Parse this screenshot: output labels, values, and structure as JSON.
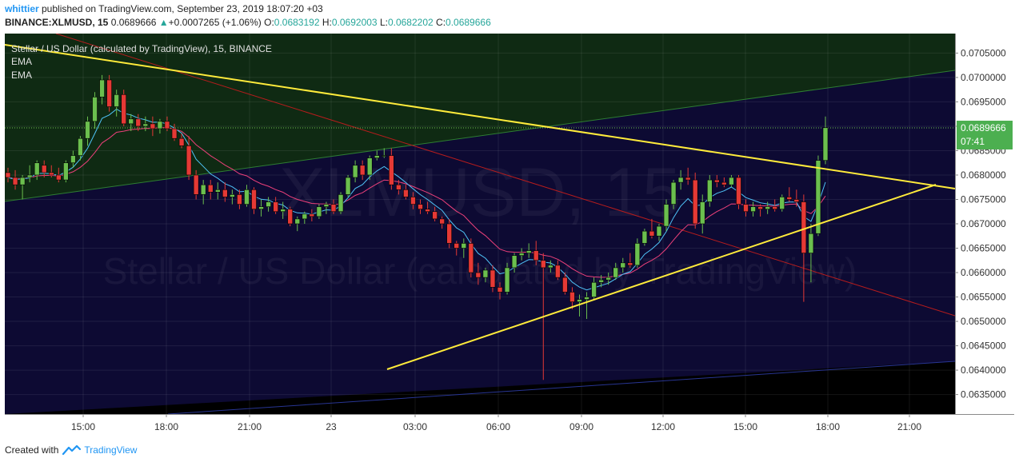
{
  "header": {
    "user": "whittier",
    "published": " published on TradingView.com, September 23, 2019 18:07:20 +03",
    "symbol": "BINANCE:XLMUSD, 15",
    "last": "0.0689666",
    "change": "+0.0007265 (+1.06%)",
    "o_label": "O:",
    "o_val": "0.0683192",
    "h_label": "H:",
    "h_val": "0.0692003",
    "l_label": "L:",
    "l_val": "0.0682202",
    "c_label": "C:",
    "c_val": "0.0689666"
  },
  "legend": {
    "title": "Stellar / US Dollar (calculated by TradingView), 15, BINANCE",
    "ema1": "EMA",
    "ema2": "EMA"
  },
  "watermark": {
    "symbol": "XLMUSD, 15",
    "name": "Stellar / US Dollar (calculated by TradingView)"
  },
  "price_tag": {
    "last": "0.0689666",
    "countdown": "07:41"
  },
  "footer": {
    "created": "Created with",
    "brand": "TradingView"
  },
  "colors": {
    "background": "#0d0a33",
    "up_candle": "#6bbf4e",
    "down_candle": "#e53935",
    "trendline": "#ffeb3b",
    "ema_fast": "#4fc3f7",
    "ema_slow": "#ec407a",
    "channel_fill": "#0e2e12",
    "price_tag": "#4caf50"
  },
  "chart_data": {
    "type": "candlestick",
    "xlabels": [
      "15:00",
      "18:00",
      "21:00",
      "23",
      "03:00",
      "06:00",
      "09:00",
      "12:00",
      "15:00",
      "18:00",
      "21:00"
    ],
    "ylim": [
      0.0631,
      0.0709
    ],
    "yticks": [
      "0.0705000",
      "0.0700000",
      "0.0695000",
      "0.0690000",
      "0.0685000",
      "0.0680000",
      "0.0675000",
      "0.0670000",
      "0.0665000",
      "0.0660000",
      "0.0655000",
      "0.0650000",
      "0.0645000",
      "0.0640000",
      "0.0635000"
    ],
    "candles": [
      [
        0.06805,
        0.06815,
        0.06785,
        0.06795
      ],
      [
        0.06795,
        0.0681,
        0.0677,
        0.0678
      ],
      [
        0.0678,
        0.068,
        0.0675,
        0.06795
      ],
      [
        0.06795,
        0.0682,
        0.06785,
        0.068
      ],
      [
        0.068,
        0.0683,
        0.0679,
        0.06825
      ],
      [
        0.0682,
        0.0683,
        0.06795,
        0.06805
      ],
      [
        0.06805,
        0.0682,
        0.06795,
        0.068
      ],
      [
        0.068,
        0.06815,
        0.06785,
        0.0679
      ],
      [
        0.0679,
        0.0683,
        0.06785,
        0.06825
      ],
      [
        0.06825,
        0.0685,
        0.06815,
        0.0684
      ],
      [
        0.0684,
        0.0688,
        0.0683,
        0.06875
      ],
      [
        0.06875,
        0.0692,
        0.0686,
        0.0691
      ],
      [
        0.0691,
        0.0697,
        0.06895,
        0.0696
      ],
      [
        0.0696,
        0.07005,
        0.06945,
        0.06995
      ],
      [
        0.06995,
        0.07005,
        0.0693,
        0.0694
      ],
      [
        0.0694,
        0.06975,
        0.0692,
        0.06965
      ],
      [
        0.06965,
        0.06975,
        0.069,
        0.06905
      ],
      [
        0.06905,
        0.06925,
        0.0689,
        0.06915
      ],
      [
        0.06915,
        0.06925,
        0.0689,
        0.069
      ],
      [
        0.069,
        0.0692,
        0.0689,
        0.06905
      ],
      [
        0.06905,
        0.0692,
        0.0688,
        0.06895
      ],
      [
        0.06895,
        0.06915,
        0.06885,
        0.0691
      ],
      [
        0.0691,
        0.0692,
        0.0689,
        0.06895
      ],
      [
        0.06895,
        0.06905,
        0.0687,
        0.06875
      ],
      [
        0.06875,
        0.06885,
        0.06855,
        0.0686
      ],
      [
        0.0686,
        0.0688,
        0.0679,
        0.068
      ],
      [
        0.068,
        0.0681,
        0.0675,
        0.0676
      ],
      [
        0.0676,
        0.0679,
        0.0674,
        0.0678
      ],
      [
        0.0678,
        0.0679,
        0.0675,
        0.06765
      ],
      [
        0.06765,
        0.06785,
        0.0675,
        0.0677
      ],
      [
        0.0677,
        0.06785,
        0.06745,
        0.06755
      ],
      [
        0.06755,
        0.0677,
        0.0674,
        0.0676
      ],
      [
        0.0676,
        0.0677,
        0.0673,
        0.0674
      ],
      [
        0.0674,
        0.0678,
        0.06735,
        0.0677
      ],
      [
        0.0677,
        0.06775,
        0.0672,
        0.0673
      ],
      [
        0.0673,
        0.0675,
        0.06715,
        0.06735
      ],
      [
        0.06735,
        0.06755,
        0.06725,
        0.06745
      ],
      [
        0.06745,
        0.06755,
        0.0672,
        0.06725
      ],
      [
        0.06725,
        0.06745,
        0.0671,
        0.0673
      ],
      [
        0.0673,
        0.06735,
        0.06695,
        0.067
      ],
      [
        0.067,
        0.06715,
        0.06685,
        0.0671
      ],
      [
        0.0671,
        0.06725,
        0.067,
        0.0672
      ],
      [
        0.0672,
        0.0673,
        0.06705,
        0.06715
      ],
      [
        0.06715,
        0.0674,
        0.0671,
        0.06735
      ],
      [
        0.06735,
        0.06745,
        0.0672,
        0.0674
      ],
      [
        0.0674,
        0.0675,
        0.0672,
        0.06725
      ],
      [
        0.06725,
        0.06765,
        0.0672,
        0.0676
      ],
      [
        0.0676,
        0.068,
        0.06755,
        0.06795
      ],
      [
        0.06795,
        0.0683,
        0.06785,
        0.0682
      ],
      [
        0.0682,
        0.0683,
        0.0679,
        0.068
      ],
      [
        0.068,
        0.0684,
        0.0679,
        0.06835
      ],
      [
        0.06835,
        0.0685,
        0.0683,
        0.0684
      ],
      [
        0.0684,
        0.06855,
        0.06835,
        0.0684
      ],
      [
        0.0684,
        0.06855,
        0.0677,
        0.0678
      ],
      [
        0.0678,
        0.0679,
        0.0676,
        0.0677
      ],
      [
        0.0677,
        0.0678,
        0.0675,
        0.06755
      ],
      [
        0.06755,
        0.06765,
        0.0673,
        0.0674
      ],
      [
        0.0674,
        0.0675,
        0.0672,
        0.0673
      ],
      [
        0.0673,
        0.06745,
        0.0672,
        0.06725
      ],
      [
        0.06725,
        0.06735,
        0.06705,
        0.0671
      ],
      [
        0.0671,
        0.06715,
        0.0669,
        0.067
      ],
      [
        0.067,
        0.0671,
        0.0665,
        0.0666
      ],
      [
        0.0666,
        0.06665,
        0.06635,
        0.0665
      ],
      [
        0.0665,
        0.0667,
        0.0663,
        0.0666
      ],
      [
        0.0666,
        0.0667,
        0.0659,
        0.066
      ],
      [
        0.066,
        0.0662,
        0.06575,
        0.0659
      ],
      [
        0.0659,
        0.0661,
        0.0658,
        0.06605
      ],
      [
        0.06605,
        0.06615,
        0.0656,
        0.0657
      ],
      [
        0.0657,
        0.0658,
        0.06545,
        0.0656
      ],
      [
        0.0656,
        0.0662,
        0.06555,
        0.0661
      ],
      [
        0.0661,
        0.0664,
        0.066,
        0.06635
      ],
      [
        0.06635,
        0.0665,
        0.06625,
        0.0664
      ],
      [
        0.0664,
        0.0666,
        0.0663,
        0.06645
      ],
      [
        0.06645,
        0.06665,
        0.06615,
        0.06625
      ],
      [
        0.06625,
        0.0664,
        0.0638,
        0.0661
      ],
      [
        0.0661,
        0.06625,
        0.066,
        0.06615
      ],
      [
        0.06615,
        0.06625,
        0.06585,
        0.0659
      ],
      [
        0.0659,
        0.066,
        0.06555,
        0.0656
      ],
      [
        0.0656,
        0.0657,
        0.06525,
        0.0654
      ],
      [
        0.0654,
        0.06555,
        0.0651,
        0.06545
      ],
      [
        0.06545,
        0.0656,
        0.06505,
        0.0655
      ],
      [
        0.0655,
        0.0659,
        0.06545,
        0.0658
      ],
      [
        0.0658,
        0.06595,
        0.0657,
        0.06585
      ],
      [
        0.06585,
        0.066,
        0.06575,
        0.0659
      ],
      [
        0.0659,
        0.0662,
        0.06585,
        0.0661
      ],
      [
        0.0661,
        0.0663,
        0.066,
        0.0662
      ],
      [
        0.0662,
        0.0664,
        0.0661,
        0.06615
      ],
      [
        0.06615,
        0.0667,
        0.0661,
        0.0666
      ],
      [
        0.0666,
        0.0669,
        0.06655,
        0.06685
      ],
      [
        0.06685,
        0.0671,
        0.0667,
        0.06675
      ],
      [
        0.06675,
        0.067,
        0.06665,
        0.06695
      ],
      [
        0.06695,
        0.0675,
        0.06685,
        0.0674
      ],
      [
        0.0674,
        0.0679,
        0.0673,
        0.06785
      ],
      [
        0.06785,
        0.0681,
        0.0677,
        0.06795
      ],
      [
        0.06795,
        0.06815,
        0.0678,
        0.0679
      ],
      [
        0.0679,
        0.06805,
        0.0669,
        0.067
      ],
      [
        0.067,
        0.0676,
        0.0668,
        0.06745
      ],
      [
        0.06745,
        0.068,
        0.06735,
        0.0679
      ],
      [
        0.0679,
        0.068,
        0.06775,
        0.06785
      ],
      [
        0.06785,
        0.06795,
        0.06775,
        0.0678
      ],
      [
        0.0678,
        0.068,
        0.06775,
        0.06795
      ],
      [
        0.06795,
        0.068,
        0.0673,
        0.0674
      ],
      [
        0.0674,
        0.0675,
        0.06715,
        0.06725
      ],
      [
        0.06725,
        0.06745,
        0.06715,
        0.06735
      ],
      [
        0.06735,
        0.0674,
        0.06715,
        0.0673
      ],
      [
        0.0673,
        0.06745,
        0.0672,
        0.06735
      ],
      [
        0.06735,
        0.0675,
        0.06725,
        0.0673
      ],
      [
        0.0673,
        0.0676,
        0.06725,
        0.06755
      ],
      [
        0.06755,
        0.06775,
        0.06745,
        0.0675
      ],
      [
        0.0675,
        0.0677,
        0.06735,
        0.06745
      ],
      [
        0.06745,
        0.0676,
        0.0654,
        0.0664
      ],
      [
        0.0664,
        0.067,
        0.0658,
        0.0668
      ],
      [
        0.0668,
        0.0684,
        0.06675,
        0.0683
      ],
      [
        0.0683,
        0.0692,
        0.06822,
        0.06897
      ]
    ]
  }
}
